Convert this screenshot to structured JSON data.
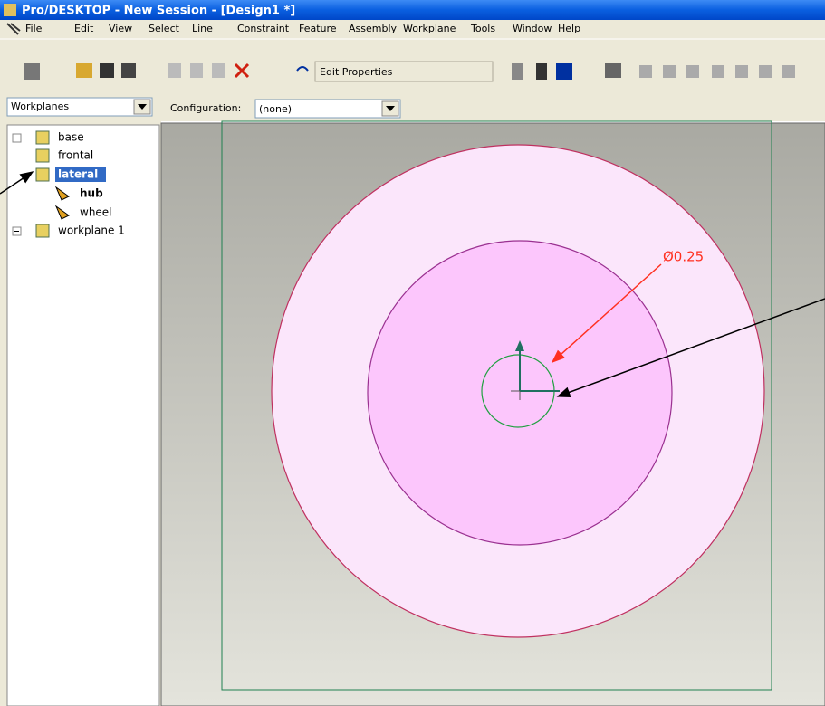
{
  "window": {
    "title": "Pro/DESKTOP - New Session - [Design1 *]"
  },
  "menu": [
    "File",
    "Edit",
    "View",
    "Select",
    "Line",
    "Constraint",
    "Feature",
    "Assembly",
    "Workplane",
    "Tools",
    "Window",
    "Help"
  ],
  "toolbar": {
    "edit_properties": "Edit Properties"
  },
  "panel": {
    "selector": "Workplanes",
    "configuration_label": "Configuration:",
    "configuration_value": "(none)"
  },
  "tree": [
    "base",
    "frontal",
    "lateral",
    "hub",
    "wheel",
    "workplane 1"
  ],
  "canvas": {
    "dimension": "Ø0.25"
  }
}
